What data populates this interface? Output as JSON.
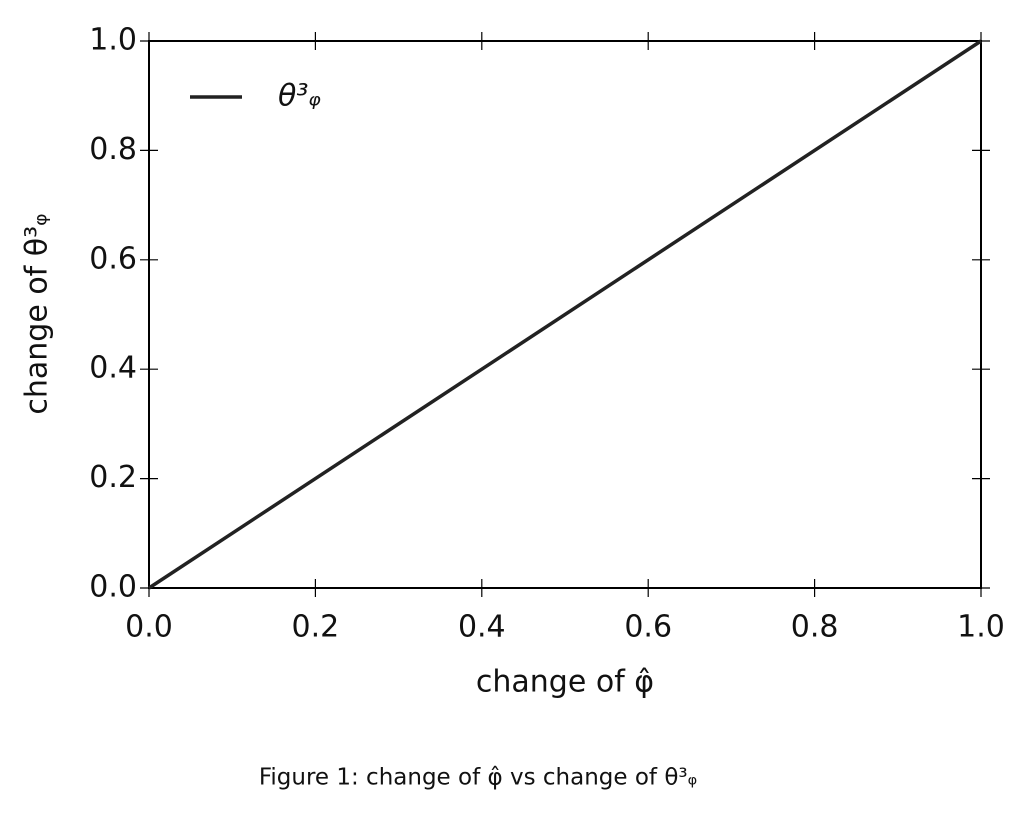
{
  "chart_data": {
    "type": "line",
    "title": "Figure 1: change of φ̂ vs change of θ³ᵩ",
    "xlabel": "change of φ̂",
    "ylabel": "change of θ³ᵩ",
    "x": [
      0,
      1
    ],
    "series": [
      {
        "name": "θ³ᵩ",
        "color": "#222222",
        "values": [
          0,
          1
        ]
      }
    ],
    "xlim": [
      0,
      1
    ],
    "ylim": [
      0,
      1
    ],
    "xticks": [
      {
        "value": 0,
        "label": "0.0"
      },
      0.2,
      0.4,
      0.6,
      0.8,
      {
        "value": 1,
        "label": "1.0"
      }
    ],
    "yticks": [
      {
        "value": 0,
        "label": "0.0"
      },
      0.2,
      0.4,
      0.6,
      0.8,
      {
        "value": 1,
        "label": "1.0"
      }
    ],
    "legend": "upper left",
    "grid": false
  }
}
